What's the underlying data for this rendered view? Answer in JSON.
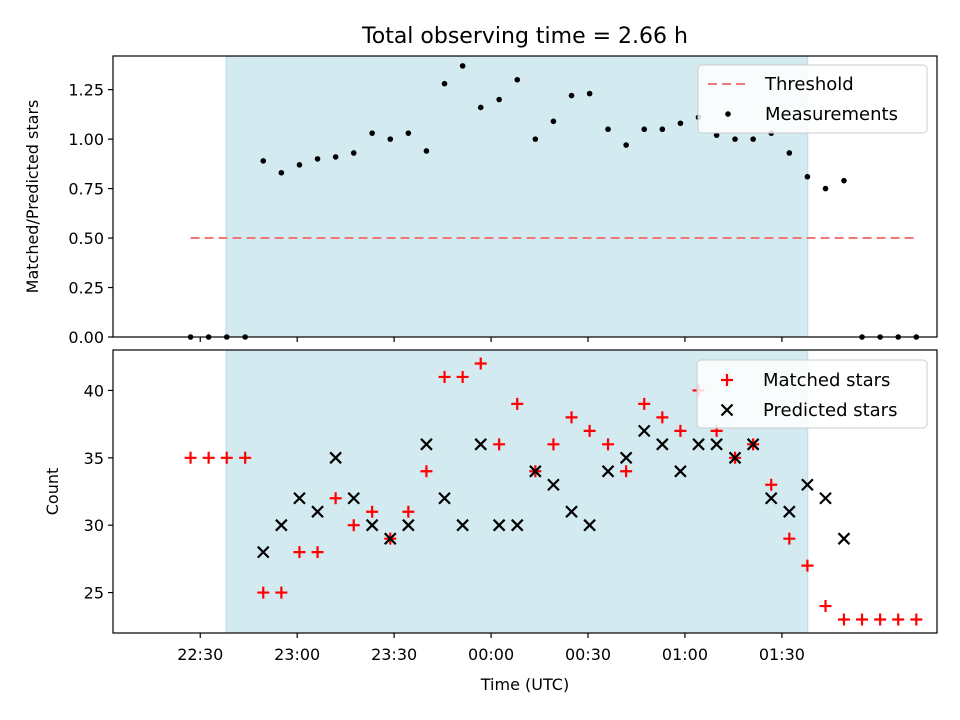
{
  "figure": {
    "title": "Total observing time = 2.66 h"
  },
  "chart_data": [
    {
      "type": "scatter",
      "title": "Total observing time = 2.66 h",
      "xlabel": "",
      "ylabel": "Matched/Predicted stars",
      "xlim": [
        -27,
        228
      ],
      "ylim": [
        0,
        1.42
      ],
      "yticks": [
        "0.00",
        "0.25",
        "0.50",
        "0.75",
        "1.00",
        "1.25"
      ],
      "ytick_values": [
        0,
        0.25,
        0.5,
        0.75,
        1.0,
        1.25
      ],
      "shaded_span": [
        8,
        188
      ],
      "shaded_color": "#d4eaf1",
      "threshold": {
        "name": "Threshold",
        "value": 0.5,
        "x_range": [
          -3,
          222
        ],
        "color": "#f07878"
      },
      "legend_position": "upper right",
      "series": [
        {
          "name": "Measurements",
          "color": "#000000",
          "x": [
            -3,
            2.6,
            8.2,
            13.9,
            19.5,
            25.1,
            30.7,
            36.3,
            41.9,
            47.5,
            53.2,
            58.8,
            64.4,
            70,
            75.6,
            81.2,
            86.8,
            92.5,
            98.1,
            103.7,
            109.3,
            114.9,
            120.5,
            126.2,
            131.8,
            137.4,
            143,
            148.6,
            154.2,
            159.8,
            165.5,
            171.1,
            176.7,
            182.3,
            187.9,
            193.5,
            199.2,
            204.8,
            210.4,
            216,
            221.6
          ],
          "y": [
            0,
            0,
            0,
            0,
            0.89,
            0.83,
            0.87,
            0.9,
            0.91,
            0.93,
            1.03,
            1.0,
            1.03,
            0.94,
            1.28,
            1.37,
            1.16,
            1.2,
            1.3,
            1.0,
            1.09,
            1.22,
            1.23,
            1.05,
            0.97,
            1.05,
            1.05,
            1.08,
            1.11,
            1.02,
            1.0,
            1.0,
            1.03,
            0.93,
            0.81,
            0.75,
            0.79,
            0,
            0,
            0,
            0
          ]
        }
      ]
    },
    {
      "type": "scatter",
      "title": "",
      "xlabel": "Time (UTC)",
      "ylabel": "Count",
      "xlim": [
        -27,
        228
      ],
      "ylim": [
        22,
        43
      ],
      "yticks": [
        "25",
        "30",
        "35",
        "40"
      ],
      "ytick_values": [
        25,
        30,
        35,
        40
      ],
      "xticks": [
        "22:30",
        "23:00",
        "23:30",
        "00:00",
        "00:30",
        "01:00",
        "01:30"
      ],
      "xtick_values": [
        0,
        30,
        60,
        90,
        120,
        150,
        180
      ],
      "shaded_span": [
        8,
        188
      ],
      "shaded_color": "#d4eaf1",
      "legend_position": "upper right",
      "series": [
        {
          "name": "Matched stars",
          "color": "#ff0000",
          "marker": "plus",
          "x": [
            -3,
            2.6,
            8.2,
            13.9,
            19.5,
            25.1,
            30.7,
            36.3,
            41.9,
            47.5,
            53.2,
            58.8,
            64.4,
            70,
            75.6,
            81.2,
            86.8,
            92.5,
            98.1,
            103.7,
            109.3,
            114.9,
            120.5,
            126.2,
            131.8,
            137.4,
            143,
            148.6,
            154.2,
            159.8,
            165.5,
            171.1,
            176.7,
            182.3,
            187.9,
            193.5,
            199.2,
            204.8,
            210.4,
            216,
            221.6
          ],
          "y": [
            35,
            35,
            35,
            35,
            25,
            25,
            28,
            28,
            32,
            30,
            31,
            29,
            31,
            34,
            41,
            41,
            42,
            36,
            39,
            34,
            36,
            38,
            37,
            36,
            34,
            39,
            38,
            37,
            40,
            37,
            35,
            36,
            33,
            29,
            27,
            24,
            23,
            23,
            23,
            23,
            23
          ]
        },
        {
          "name": "Predicted stars",
          "color": "#000000",
          "marker": "x",
          "x": [
            19.5,
            25.1,
            30.7,
            36.3,
            41.9,
            47.5,
            53.2,
            58.8,
            64.4,
            70,
            75.6,
            81.2,
            86.8,
            92.5,
            98.1,
            103.7,
            109.3,
            114.9,
            120.5,
            126.2,
            131.8,
            137.4,
            143,
            148.6,
            154.2,
            159.8,
            165.5,
            171.1,
            176.7,
            182.3,
            187.9,
            193.5,
            199.2
          ],
          "y": [
            28,
            30,
            32,
            31,
            35,
            32,
            30,
            29,
            30,
            36,
            32,
            30,
            36,
            30,
            30,
            34,
            33,
            31,
            30,
            34,
            35,
            37,
            36,
            34,
            36,
            36,
            35,
            36,
            32,
            31,
            33,
            32,
            29
          ]
        }
      ]
    }
  ]
}
